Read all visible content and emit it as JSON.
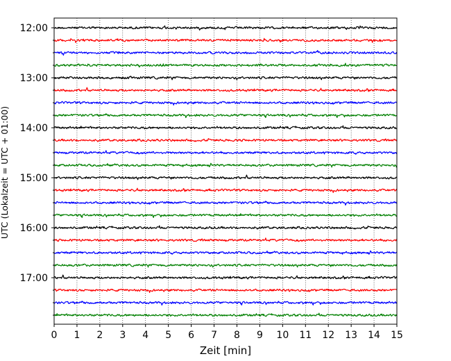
{
  "chart_data": {
    "type": "line",
    "title": "",
    "xlabel": "Zeit  [min]",
    "ylabel": "UTC (Lokalzeit = UTC + 01:00)",
    "xlim": [
      0,
      15
    ],
    "x_ticks": [
      "0",
      "1",
      "2",
      "3",
      "4",
      "5",
      "6",
      "7",
      "8",
      "9",
      "10",
      "11",
      "12",
      "13",
      "14",
      "15"
    ],
    "y_ticks": [
      "12:00",
      "13:00",
      "14:00",
      "15:00",
      "16:00",
      "17:00"
    ],
    "trace_start": "12:00",
    "trace_interval_min": 15,
    "trace_count": 24,
    "trace_colors": [
      "#000000",
      "#ff0000",
      "#0000ff",
      "#008000"
    ],
    "grid_x": true,
    "grid_style": "dotted",
    "legend": "none"
  }
}
